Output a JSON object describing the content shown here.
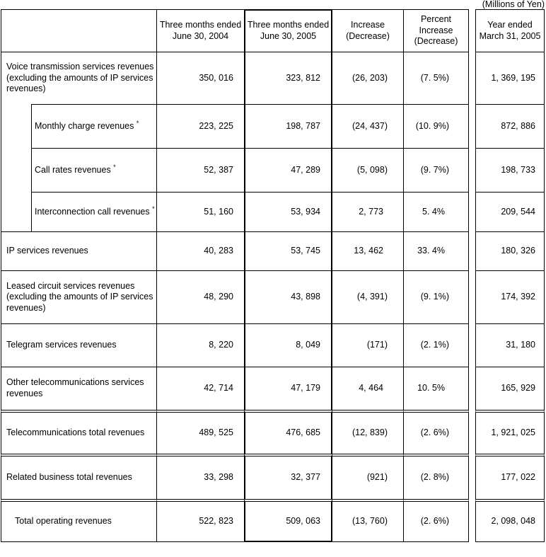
{
  "note": "(Millions of Yen)",
  "table": {
    "columns": [
      "",
      "Three months ended June 30, 2004",
      "Three months ended June 30, 2005",
      "Increase (Decrease)",
      "Percent Increase (Decrease)",
      "Year ended March 31, 2005"
    ],
    "rows": [
      {
        "label": "Voice transmission services revenues (excluding the amounts of IP services revenues)",
        "sub": false,
        "indented": false,
        "rule_above": "single",
        "v2004": "350, 016",
        "v2005": "323, 812",
        "inc": "(26, 203)",
        "pct": "(7. 5%)",
        "year": "1, 369, 195"
      },
      {
        "label": "Monthly charge revenues *",
        "sub": true,
        "indented": false,
        "rule_above": "single",
        "v2004": "223, 225",
        "v2005": "198, 787",
        "inc": "(24, 437)",
        "pct": "(10. 9%)",
        "year": "872, 886"
      },
      {
        "label": "Call rates revenues *",
        "sub": true,
        "indented": false,
        "rule_above": "single",
        "v2004": "52, 387",
        "v2005": "47, 289",
        "inc": "(5, 098)",
        "pct": "(9. 7%)",
        "year": "198, 733"
      },
      {
        "label": "Interconnection call revenues *",
        "sub": true,
        "indented": false,
        "rule_above": "single",
        "v2004": "51, 160",
        "v2005": "53, 934",
        "inc": "2, 773",
        "pct": "5. 4%",
        "year": "209, 544"
      },
      {
        "label": "IP services revenues",
        "sub": false,
        "indented": false,
        "rule_above": "single",
        "v2004": "40, 283",
        "v2005": "53, 745",
        "inc": "13, 462",
        "pct": "33. 4%",
        "year": "180, 326"
      },
      {
        "label": "Leased circuit services revenues (excluding the amounts of IP services revenues)",
        "sub": false,
        "indented": false,
        "rule_above": "single",
        "v2004": "48, 290",
        "v2005": "43, 898",
        "inc": "(4, 391)",
        "pct": "(9. 1%)",
        "year": "174, 392"
      },
      {
        "label": "Telegram services revenues",
        "sub": false,
        "indented": false,
        "rule_above": "single",
        "v2004": "8, 220",
        "v2005": "8, 049",
        "inc": "(171)",
        "pct": "(2. 1%)",
        "year": "31, 180"
      },
      {
        "label": "Other telecommunications services revenues",
        "sub": false,
        "indented": false,
        "rule_above": "single",
        "v2004": "42, 714",
        "v2005": "47, 179",
        "inc": "4, 464",
        "pct": "10. 5%",
        "year": "165, 929"
      },
      {
        "label": "Telecommunications total revenues",
        "sub": false,
        "indented": false,
        "rule_above": "double",
        "v2004": "489, 525",
        "v2005": "476, 685",
        "inc": "(12, 839)",
        "pct": "(2. 6%)",
        "year": "1, 921, 025"
      },
      {
        "label": "Related business total revenues",
        "sub": false,
        "indented": false,
        "rule_above": "double",
        "v2004": "33, 298",
        "v2005": "32, 377",
        "inc": "(921)",
        "pct": "(2. 8%)",
        "year": "177, 022"
      },
      {
        "label": "Total operating revenues",
        "sub": false,
        "indented": true,
        "rule_above": "double",
        "v2004": "522, 823",
        "v2005": "509, 063",
        "inc": "(13, 760)",
        "pct": "(2. 6%)",
        "year": "2, 098, 048"
      }
    ]
  }
}
